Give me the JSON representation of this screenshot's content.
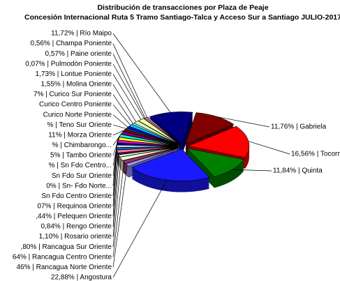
{
  "chart_data": {
    "type": "pie3d",
    "title": "Distribución de transacciones por Plaza de Peaje",
    "subtitle": "Concesión Internacional Ruta 5 Tramo Santiago-Talca y Acceso Sur a Santiago JULIO-2017",
    "categories": [
      "11,76% | Gabriela",
      "16,56% | Tocornal",
      "11,84% | Quinta",
      "22,88% | Angostura",
      "46% | Rancagua Norte Oriente",
      "64% | Rancagua Centro Oriente",
      ",80% | Rancagua Sur Oriente",
      "1,10% | Rosario oriente",
      "0,84% | Rengo Oriente",
      ",44% | Pelequen Oriente",
      "07% | Requinoa Oriente",
      "Sn Fdo Centro Oriente",
      "0% | Sn- Fdo Norte...",
      "Sn Fdo Sur Oriente",
      "% | Sn Fdo Centro...",
      "5% | Tambo Oriente",
      "% | Chimbarongo...",
      "11% | Morza Oriente",
      "% | Teno Sur Oriente",
      "Curico Norte Poniente",
      "Curico Centro Poniente",
      "7% | Curico Sur Poniente",
      "1,55% | Molina Oriente",
      "1,73% | Lontue Poniente",
      "0,07% | Pulmodòn Poniente",
      "0,57% | Paine oriente",
      "0,56% | Champa Poniente",
      "11,72% | Río Maipo"
    ],
    "values": [
      11.76,
      16.56,
      11.84,
      22.88,
      1.46,
      1.64,
      1.8,
      1.1,
      0.84,
      1.44,
      1.07,
      1.3,
      1.0,
      1.2,
      1.5,
      1.35,
      1.5,
      1.11,
      0.6,
      1.0,
      1.2,
      0.67,
      1.55,
      1.73,
      0.07,
      0.57,
      0.56,
      11.72
    ],
    "colors": [
      "#800000",
      "#ff0000",
      "#008000",
      "#1a1aff",
      "#9999ff",
      "#993366",
      "#ffffcc",
      "#ccffff",
      "#660066",
      "#ff8080",
      "#0066cc",
      "#ccccff",
      "#000080",
      "#ff00ff",
      "#ffff00",
      "#00ffff",
      "#800080",
      "#800000",
      "#008080",
      "#0000ff",
      "#00ccff",
      "#ccffff",
      "#ccffcc",
      "#ffff99",
      "#99ccff",
      "#ff99cc",
      "#cc99ff",
      "#000080"
    ]
  }
}
